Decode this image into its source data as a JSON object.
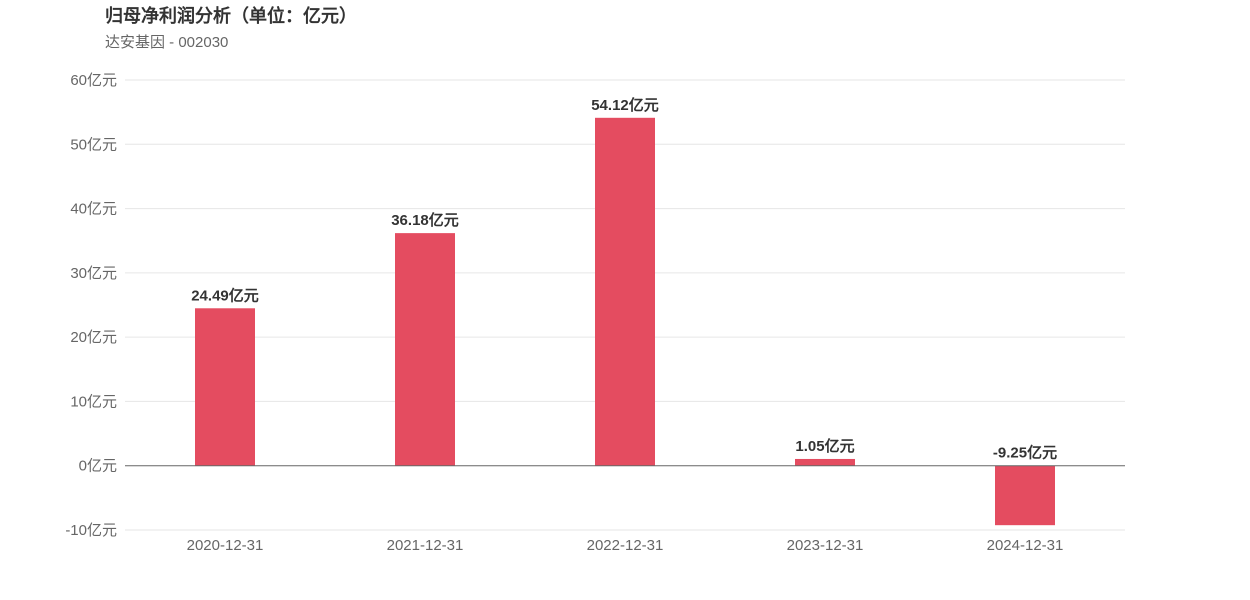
{
  "chart_data": {
    "type": "bar",
    "title": "归母净利润分析（单位：亿元）",
    "subtitle": "达安基因 - 002030",
    "categories": [
      "2020-12-31",
      "2021-12-31",
      "2022-12-31",
      "2023-12-31",
      "2024-12-31"
    ],
    "series": [
      {
        "values": [
          24.49,
          36.18,
          54.12,
          1.05,
          -9.25
        ],
        "labels": [
          "24.49亿元",
          "36.18亿元",
          "54.12亿元",
          "1.05亿元",
          "-9.25亿元"
        ],
        "color": "#e44c60"
      }
    ],
    "ylim": [
      -10,
      60
    ],
    "yticks": [
      60,
      50,
      40,
      30,
      20,
      10,
      0,
      -10
    ],
    "ytick_labels": [
      "60亿元",
      "50亿元",
      "40亿元",
      "30亿元",
      "20亿元",
      "10亿元",
      "0亿元",
      "-10亿元"
    ],
    "xlabel": "",
    "ylabel": "",
    "grid": true,
    "legend": false,
    "colors": {
      "bar": "#e44c60",
      "grid": "#e6e6e6",
      "zero_line": "#666666"
    }
  }
}
